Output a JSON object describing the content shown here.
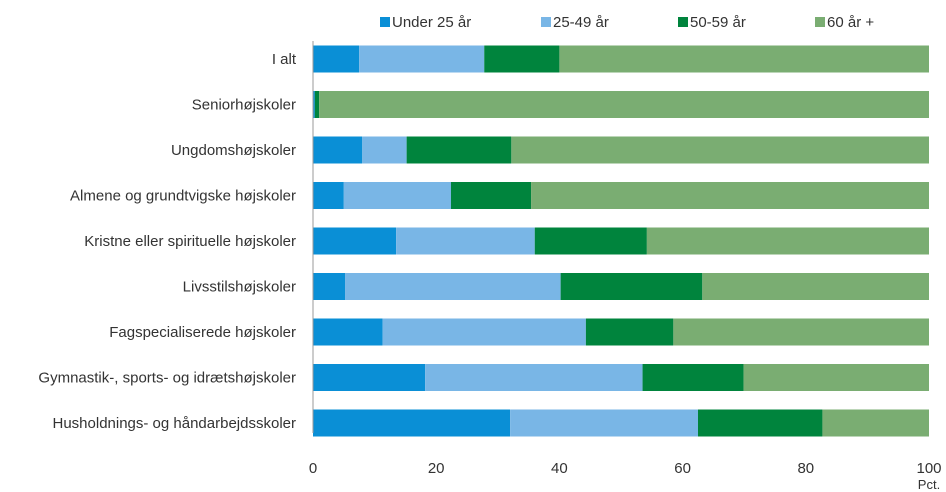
{
  "chart_data": {
    "type": "bar",
    "orientation": "horizontal",
    "stacked": true,
    "categories": [
      "I alt",
      "Seniorhøjskoler",
      "Ungdomshøjskoler",
      "Almene og grundtvigske højskoler",
      "Kristne eller spirituelle højskoler",
      "Livsstilshøjskoler",
      "Fagspecialiserede højskoler",
      "Gymnastik-, sports- og idrætshøjskoler",
      "Husholdnings- og håndarbejdsskoler"
    ],
    "series": [
      {
        "name": "Under 25 år",
        "color": "#0a8fd6",
        "values": [
          7.5,
          0.3,
          8,
          5,
          13.5,
          5.2,
          11.3,
          18.2,
          32
        ]
      },
      {
        "name": "25-49 år",
        "color": "#79b6e6",
        "values": [
          20.3,
          0,
          7.2,
          17.4,
          22.5,
          35,
          33,
          35.3,
          30.5
        ]
      },
      {
        "name": "50-59 år",
        "color": "#00843d",
        "values": [
          12.2,
          0.7,
          17,
          13,
          18.2,
          23,
          14.2,
          16.4,
          20.2
        ]
      },
      {
        "name": "60 år +",
        "color": "#7aad72",
        "values": [
          60,
          99,
          67.8,
          64.6,
          45.8,
          36.8,
          41.5,
          30.1,
          17.3
        ]
      }
    ],
    "xlim": [
      0,
      100
    ],
    "xticks": [
      "0",
      "20",
      "40",
      "60",
      "80",
      "100"
    ],
    "unit": "Pct.",
    "legend_position": "top",
    "grid": false
  }
}
